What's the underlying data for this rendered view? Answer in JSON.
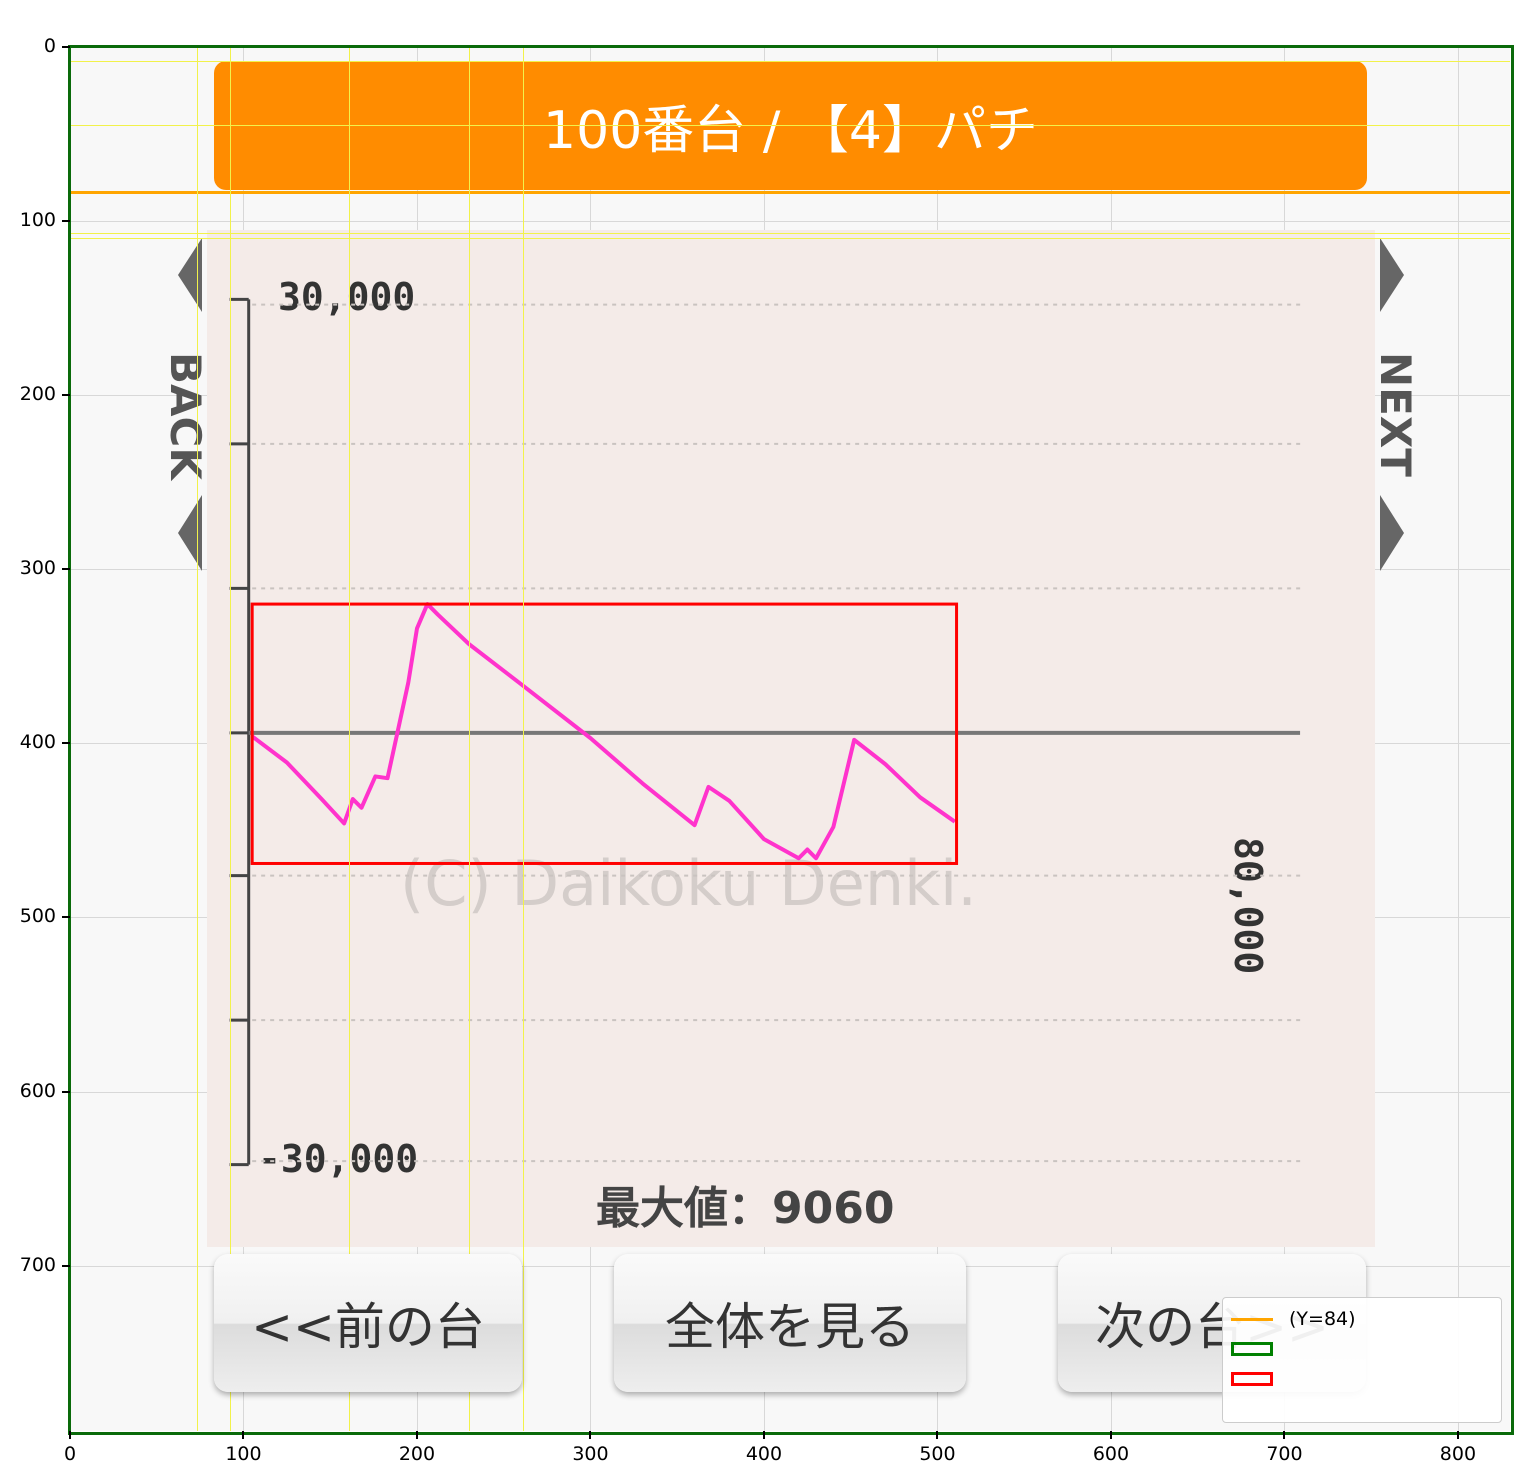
{
  "figure": {
    "title": "",
    "x_ticks": [
      "0",
      "100",
      "200",
      "300",
      "400",
      "500",
      "600",
      "700",
      "800"
    ],
    "y_ticks": [
      "0",
      "100",
      "200",
      "300",
      "400",
      "500",
      "600",
      "700"
    ]
  },
  "screenshot": {
    "header_text": "100番台 / 【4】パチ",
    "back_label": "BACK",
    "next_label": "NEXT",
    "y_top_label": "30,000",
    "y_bottom_label": "-30,000",
    "x_end_label": "80,000",
    "watermark": "(C) Daikoku Denki.",
    "max_value_text": "最大値：9060",
    "buttons": {
      "prev": "<<前の台",
      "all": "全体を見る",
      "next": "次の台>>"
    },
    "line_color": "#ff33cc",
    "header_color": "#ff8c00"
  },
  "legend": {
    "items": [
      {
        "label": "(Y=84)",
        "color": "#ffa500"
      },
      {
        "label": "",
        "color": "#008000"
      },
      {
        "label": "",
        "color": "#ff0000"
      }
    ]
  },
  "chart_data": {
    "type": "line",
    "title": "",
    "xlabel": "",
    "ylabel": "",
    "xlim": [
      0,
      830
    ],
    "ylim": [
      795,
      0
    ],
    "x": [
      105,
      125,
      145,
      158,
      163,
      168,
      176,
      183,
      190,
      195,
      200,
      206,
      212,
      230,
      260,
      300,
      330,
      360,
      368,
      380,
      400,
      420,
      425,
      430,
      435,
      440,
      452,
      470,
      490,
      510
    ],
    "y": [
      396,
      411,
      432,
      446,
      432,
      437,
      419,
      420,
      388,
      365,
      334,
      320,
      326,
      343,
      366,
      397,
      423,
      447,
      425,
      433,
      455,
      466,
      461,
      466,
      457,
      448,
      398,
      412,
      431,
      445
    ]
  }
}
